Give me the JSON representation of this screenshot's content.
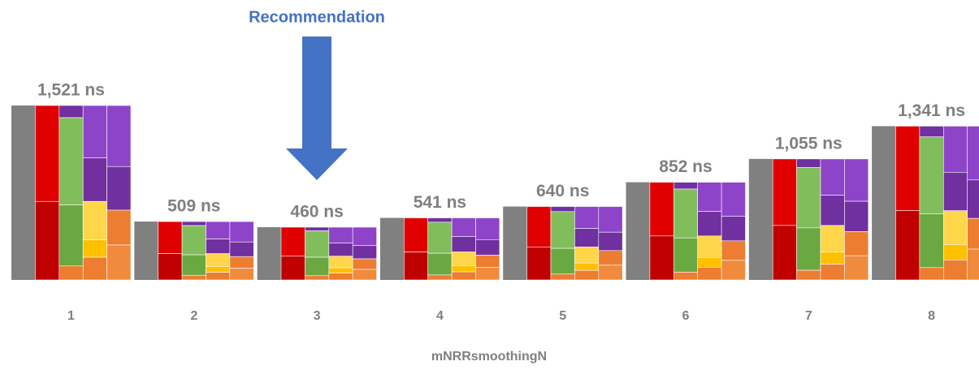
{
  "annotation": "Recommendation",
  "chart_data": {
    "type": "bar",
    "categories": [
      "1",
      "2",
      "3",
      "4",
      "5",
      "6",
      "7",
      "8"
    ],
    "values": [
      1521,
      509,
      460,
      541,
      640,
      852,
      1055,
      1341
    ],
    "value_labels": [
      "1,521 ns",
      "509 ns",
      "460 ns",
      "541 ns",
      "640 ns",
      "852 ns",
      "1,055 ns",
      "1,341 ns"
    ],
    "xlabel": "mNRRsmoothingN",
    "color": "#808080"
  }
}
